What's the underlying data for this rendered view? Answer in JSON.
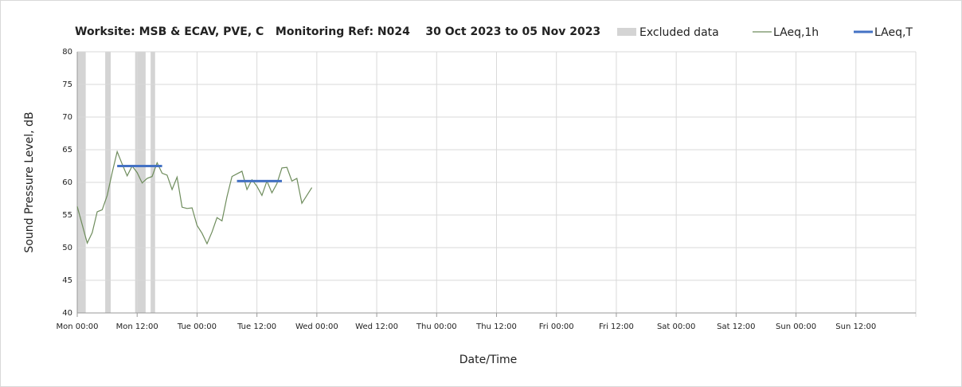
{
  "chart_data": {
    "type": "line",
    "title": "Worksite: MSB & ECAV, PVE, C   Monitoring Ref: N024    30 Oct 2023 to 05 Nov 2023",
    "x_label": "Date/Time",
    "y_label": "Sound Pressure Level, dB",
    "xlim": [
      0,
      168
    ],
    "xticks": [
      {
        "value": 0,
        "label": "Mon 00:00"
      },
      {
        "value": 12,
        "label": "Mon 12:00"
      },
      {
        "value": 24,
        "label": "Tue 00:00"
      },
      {
        "value": 36,
        "label": "Tue 12:00"
      },
      {
        "value": 48,
        "label": "Wed 00:00"
      },
      {
        "value": 60,
        "label": "Wed 12:00"
      },
      {
        "value": 72,
        "label": "Thu 00:00"
      },
      {
        "value": 84,
        "label": "Thu 12:00"
      },
      {
        "value": 96,
        "label": "Fri 00:00"
      },
      {
        "value": 108,
        "label": "Fri 12:00"
      },
      {
        "value": 120,
        "label": "Sat 00:00"
      },
      {
        "value": 132,
        "label": "Sat 12:00"
      },
      {
        "value": 144,
        "label": "Sun 00:00"
      },
      {
        "value": 156,
        "label": "Sun 12:00"
      }
    ],
    "ylim": [
      40,
      80
    ],
    "yticks": [
      40,
      45,
      50,
      55,
      60,
      65,
      70,
      75,
      80
    ],
    "grid": true,
    "legend": "top-right",
    "excluded_label": "Excluded data",
    "excluded_color": "#d4d4d4",
    "excluded": [
      [
        0,
        1.7
      ],
      [
        5.6,
        6.7
      ],
      [
        11.6,
        13.7
      ],
      [
        14.7,
        15.6
      ]
    ],
    "series": [
      {
        "name": "LAeq,1h",
        "color": "#6e8c5c",
        "width": 1.2,
        "x": [
          0,
          1,
          2,
          3,
          4,
          5,
          6,
          7,
          8,
          9,
          10,
          11,
          12,
          13,
          14,
          15,
          16,
          17,
          18,
          19,
          20,
          21,
          22,
          23,
          24,
          25,
          26,
          27,
          28,
          29,
          30,
          31,
          32,
          33,
          34,
          35,
          36,
          37,
          38,
          39,
          40,
          41,
          42,
          43,
          44,
          45,
          46,
          47
        ],
        "values": [
          56.3,
          53.5,
          50.7,
          52.3,
          55.5,
          55.8,
          58,
          61.5,
          64.7,
          62.8,
          61.0,
          62.5,
          61.5,
          59.9,
          60.6,
          60.9,
          63.0,
          61.4,
          61.1,
          58.9,
          60.8,
          56.2,
          56.0,
          56.1,
          53.4,
          52.2,
          50.6,
          52.4,
          54.6,
          54.1,
          57.8,
          60.9,
          61.3,
          61.7,
          58.9,
          60.4,
          59.4,
          58.0,
          60.2,
          58.4,
          59.8,
          62.2,
          62.3,
          60.2,
          60.6,
          56.8,
          58.0,
          59.2
        ]
      },
      {
        "name": "LAeq,T",
        "color": "#4472c4",
        "width": 3,
        "x": [
          8,
          17,
          null,
          32,
          41
        ],
        "values": [
          62.5,
          62.5,
          null,
          60.2,
          60.2
        ]
      }
    ]
  }
}
